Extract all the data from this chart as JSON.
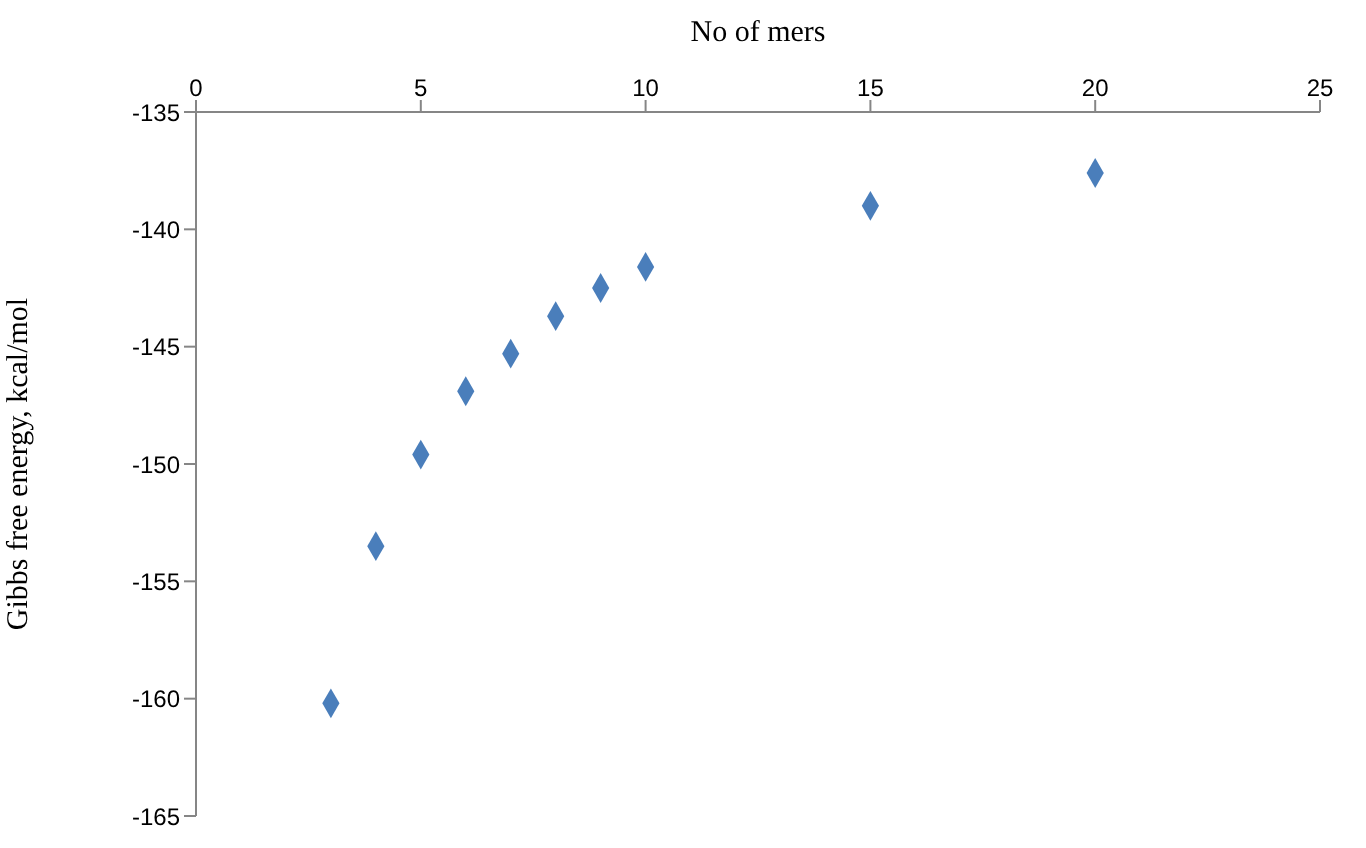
{
  "chart_data": {
    "type": "scatter",
    "xlabel": "No of mers",
    "ylabel": "Gibbs free energy, kcal/mol",
    "x": [
      3,
      4,
      5,
      6,
      7,
      8,
      9,
      10,
      15,
      20
    ],
    "values": [
      -160.2,
      -153.5,
      -149.6,
      -146.9,
      -145.3,
      -143.7,
      -142.5,
      -141.6,
      -139.0,
      -137.6
    ],
    "color": "#4a7ebb",
    "marker": "diamond",
    "xlim": [
      0,
      25
    ],
    "xticks": [
      0,
      5,
      10,
      15,
      20,
      25
    ],
    "ylim": [
      -165,
      -135
    ],
    "yticks": [
      -165,
      -160,
      -155,
      -150,
      -145,
      -140,
      -135
    ]
  }
}
